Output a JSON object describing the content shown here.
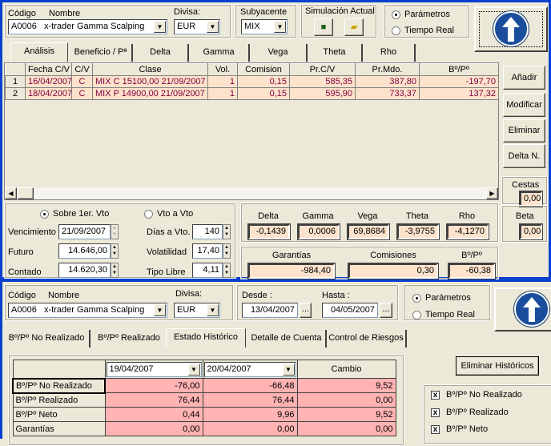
{
  "top": {
    "codigo_label": "Código",
    "nombre_label": "Nombre",
    "divisa_label": "Divisa:",
    "codigo": "A0006",
    "nombre": "x-trader Gamma Scalping",
    "divisa": "EUR",
    "subyacente_label": "Subyacente",
    "subyacente": "MIX",
    "simulacion_label": "Simulación Actual",
    "radio_parametros": "Parámetros",
    "radio_tiempo_real": "Tiempo Real",
    "tabs": [
      "Análisis",
      "Beneficio / Pª",
      "Delta",
      "Gamma",
      "Vega",
      "Theta",
      "Rho"
    ],
    "grid": {
      "headers": [
        "",
        "Fecha C/V",
        "C/V",
        "Clase",
        "Vol.",
        "Comision",
        "Pr.C/V",
        "Pr.Mdo.",
        "Bº/Pº"
      ],
      "rows": [
        [
          "1",
          "16/04/2007",
          "C",
          "MIX C 15100,00 21/09/2007",
          "1",
          "0,15",
          "585,35",
          "387,80",
          "-197,70"
        ],
        [
          "2",
          "18/04/2007",
          "C",
          "MIX P 14900,00 21/09/2007",
          "1",
          "0,15",
          "595,90",
          "733,37",
          "137,32"
        ]
      ]
    },
    "buttons": {
      "add": "Añadir",
      "modify": "Modificar",
      "delete": "Eliminar",
      "delta_n": "Delta N."
    },
    "cestas_label": "Cestas",
    "cestas": "0,00",
    "beta_label": "Beta",
    "beta": "0,00",
    "params": {
      "radio_sobre": "Sobre 1er. Vto",
      "radio_vto": "Vto a Vto",
      "vencimiento_label": "Vencimiento",
      "vencimiento": "21/09/2007",
      "futuro_label": "Futuro",
      "futuro": "14.646,00",
      "contado_label": "Contado",
      "contado": "14.620,30",
      "dias_label": "Días a Vto.",
      "dias": "140",
      "volatilidad_label": "Volatilidad",
      "volatilidad": "17,40",
      "tipo_label": "Tipo Libre",
      "tipo": "4,11"
    },
    "greeks": {
      "labels": [
        "Delta",
        "Gamma",
        "Vega",
        "Theta",
        "Rho"
      ],
      "values": [
        "-0,1439",
        "0,0006",
        "69,8684",
        "-3,9755",
        "-4,1270"
      ]
    },
    "totals": {
      "labels": [
        "Garantías",
        "Comisiones",
        "Bº/Pº"
      ],
      "values": [
        "-984,40",
        "0,30",
        "-60,38"
      ]
    }
  },
  "bottom": {
    "codigo_label": "Código",
    "nombre_label": "Nombre",
    "divisa_label": "Divisa:",
    "codigo": "A0006",
    "nombre": "x-trader Gamma Scalping",
    "divisa": "EUR",
    "desde_label": "Desde :",
    "desde": "13/04/2007",
    "hasta_label": "Hasta :",
    "hasta": "04/05/2007",
    "dots": "...",
    "radio_parametros": "Parámetros",
    "radio_tiempo_real": "Tiempo Real",
    "tabs": [
      "Bº/Pº No Realizado",
      "Bº/Pº Realizado",
      "Estado Histórico",
      "Detalle de Cuenta",
      "Control de Riesgos"
    ],
    "hist": {
      "date1": "19/04/2007",
      "date2": "20/04/2007",
      "cambio": "Cambio",
      "rows": [
        [
          "Bº/Pº  No  Realizado",
          "-76,00",
          "-66,48",
          "9,52"
        ],
        [
          "Bº/Pº  Realizado",
          "76,44",
          "76,44",
          "0,00"
        ],
        [
          "Bº/Pº  Neto",
          "0,44",
          "9,96",
          "9,52"
        ],
        [
          "Garantías",
          "0,00",
          "0,00",
          "0,00"
        ]
      ]
    },
    "eliminar_historicos": "Eliminar Históricos",
    "checks": [
      "Bº/Pº  No Realizado",
      "Bº/Pº  Realizado",
      "Bº/Pº  Neto"
    ]
  },
  "colors": {
    "accent": "#0a3fd0",
    "cell": "#fde3cc",
    "hist_cell": "#ffb3b3",
    "grid_text": "#800040"
  }
}
